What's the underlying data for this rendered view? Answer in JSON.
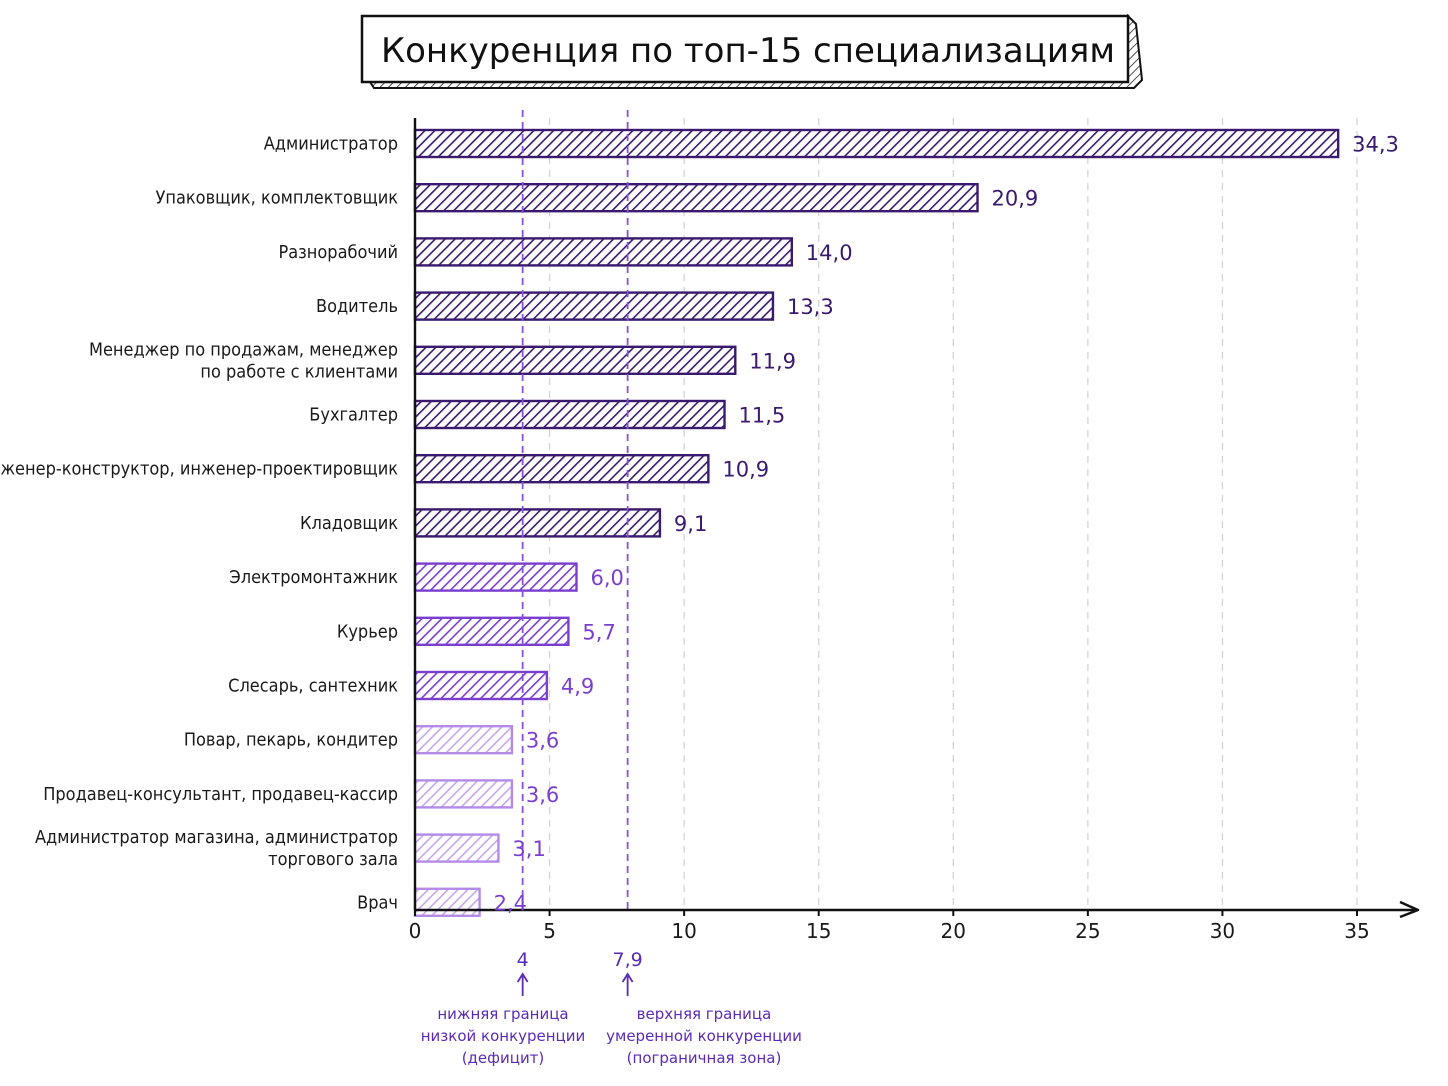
{
  "chart_data": {
    "type": "bar",
    "orientation": "horizontal",
    "title": "Конкуренция по топ-15 специализациям",
    "xlabel": "",
    "ylabel": "",
    "xlim": [
      0,
      35
    ],
    "xticks": [
      "0",
      "5",
      "10",
      "15",
      "20",
      "25",
      "30",
      "35"
    ],
    "grid": true,
    "categories": [
      [
        "Администратор"
      ],
      [
        "Упаковщик, комплектовщик"
      ],
      [
        "Разнорабочий"
      ],
      [
        "Водитель"
      ],
      [
        "Менеджер по продажам, менеджер",
        "по работе с клиентами"
      ],
      [
        "Бухгалтер"
      ],
      [
        "Инженер-конструктор, инженер-проектировщик"
      ],
      [
        "Кладовщик"
      ],
      [
        "Электромонтажник"
      ],
      [
        "Курьер"
      ],
      [
        "Слесарь, сантехник"
      ],
      [
        "Повар, пекарь, кондитер"
      ],
      [
        "Продавец-консультант, продавец-кассир"
      ],
      [
        "Администратор магазина, администратор",
        "торгового зала"
      ],
      [
        "Врач"
      ]
    ],
    "values": [
      34.3,
      20.9,
      14.0,
      13.3,
      11.9,
      11.5,
      10.9,
      9.1,
      6.0,
      5.7,
      4.9,
      3.6,
      3.6,
      3.1,
      2.4
    ],
    "value_labels": [
      "34,3",
      "20,9",
      "14,0",
      "13,3",
      "11,9",
      "11,5",
      "10,9",
      "9,1",
      "6,0",
      "5,7",
      "4,9",
      "3,6",
      "3,6",
      "3,1",
      "2,4"
    ],
    "thresholds": [
      {
        "value": 4.0,
        "label": "4",
        "note": [
          "нижняя граница",
          "низкой конкуренции",
          "(дефицит)"
        ]
      },
      {
        "value": 7.9,
        "label": "7,9",
        "note": [
          "верхняя граница",
          "умеренной конкуренции",
          "(пограничная зона)"
        ]
      }
    ],
    "colors": {
      "high_zone": "#3a1a6e",
      "mid_zone": "#7b3fd0",
      "low_zone": "#b48be8",
      "threshold_line": "#8a4fe0"
    }
  }
}
